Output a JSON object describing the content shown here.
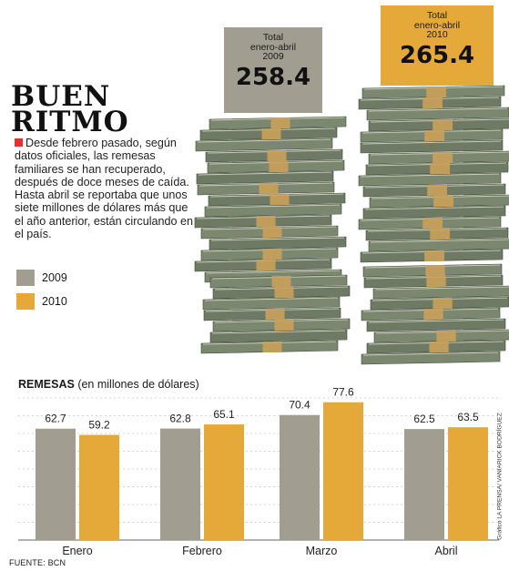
{
  "header": {
    "title_line1": "BUEN",
    "title_line2": "RITMO",
    "intro": "Desde febrero pasado, según datos oficiales, las remesas familiares se han recuperado, después de doce meses de caída. Hasta abril se reportaba que unos siete millones de dólares más que el año anterior, están circulando en el país."
  },
  "totals": [
    {
      "label_line1": "Total",
      "label_line2": "enero-abril",
      "year": "2009",
      "value": "258.4",
      "color": "#a19e91"
    },
    {
      "label_line1": "Total",
      "label_line2": "enero-abril",
      "year": "2010",
      "value": "265.4",
      "color": "#e5a93a"
    }
  ],
  "legend": [
    {
      "label": "2009",
      "color": "#a19e91"
    },
    {
      "label": "2010",
      "color": "#e5a93a"
    }
  ],
  "chart_data": {
    "type": "bar",
    "title_bold": "REMESAS",
    "title_rest": "(en millones de dólares)",
    "categories": [
      "Enero",
      "Febrero",
      "Marzo",
      "Abril"
    ],
    "series": [
      {
        "name": "2009",
        "values": [
          62.7,
          62.8,
          70.4,
          62.5
        ],
        "color": "#a19e91"
      },
      {
        "name": "2010",
        "values": [
          59.2,
          65.1,
          77.6,
          63.5
        ],
        "color": "#e5a93a"
      }
    ],
    "value_labels": [
      [
        "62.7",
        "62.8",
        "70.4",
        "62.5"
      ],
      [
        "59.2",
        "65.1",
        "77.6",
        "63.5"
      ]
    ],
    "ylim": [
      0,
      80
    ],
    "grid": "horizontal dashed lines"
  },
  "footer": {
    "source": "FUENTE: BCN",
    "credit": "Gráfico LA PRENSA/ VANIARICK BODRÍGUEZ"
  },
  "illustration": {
    "icon": "stacked-banknotes-icon"
  }
}
